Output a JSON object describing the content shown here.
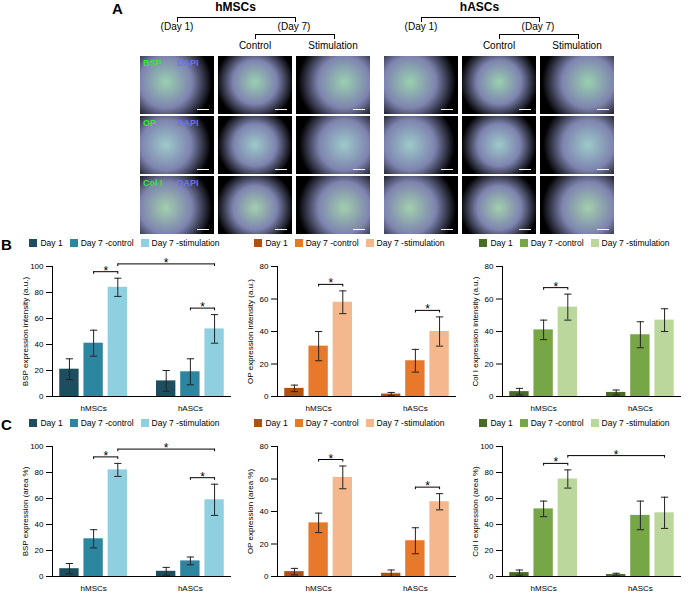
{
  "panel_a": {
    "label": "A",
    "groups": [
      {
        "name": "hMSCs",
        "day_first": "(Day 1)",
        "day_second": "(Day 7)",
        "conditions": [
          "Control",
          "Stimulation"
        ]
      },
      {
        "name": "hASCs",
        "day_first": "(Day 1)",
        "day_second": "(Day 7)",
        "conditions": [
          "Control",
          "Stimulation"
        ]
      }
    ],
    "rows": [
      [
        "BSP",
        "DAPI"
      ],
      [
        "OP",
        "DAPI"
      ],
      [
        "Col I",
        "DAPI"
      ]
    ]
  },
  "chart_data": [
    {
      "panel": "B",
      "type": "bar",
      "ylabel": "BSP expression intensity (a.u.)",
      "legend": "top",
      "categories": [
        "hMSCs",
        "hASCs"
      ],
      "series": [
        {
          "name": "Day 1",
          "color": "#1d4e60",
          "values": [
            21,
            12
          ],
          "errors": [
            8,
            8
          ]
        },
        {
          "name": "Day 7 -control",
          "color": "#2d86a0",
          "values": [
            41,
            19
          ],
          "errors": [
            10,
            10
          ]
        },
        {
          "name": "Day 7 -stimulation",
          "color": "#8ecfe0",
          "values": [
            84,
            52
          ],
          "errors": [
            7,
            11
          ]
        }
      ],
      "ylim": [
        0,
        100
      ],
      "yticks": [
        0,
        20,
        40,
        60,
        80,
        100
      ],
      "brackets": [
        {
          "from": [
            "hMSCs",
            "Day 7 -control"
          ],
          "to": [
            "hMSCs",
            "Day 7 -stimulation"
          ],
          "label": "*"
        },
        {
          "from": [
            "hMSCs",
            "Day 7 -stimulation"
          ],
          "to": [
            "hASCs",
            "Day 7 -stimulation"
          ],
          "label": "*"
        },
        {
          "from": [
            "hASCs",
            "Day 7 -control"
          ],
          "to": [
            "hASCs",
            "Day 7 -stimulation"
          ],
          "label": "*"
        }
      ]
    },
    {
      "panel": "B",
      "type": "bar",
      "ylabel": "OP expression intensity (a.u.)",
      "legend": "top",
      "categories": [
        "hMSCs",
        "hASCs"
      ],
      "series": [
        {
          "name": "Day 1",
          "color": "#b3500f",
          "values": [
            5,
            1.5
          ],
          "errors": [
            2,
            1
          ]
        },
        {
          "name": "Day 7 -control",
          "color": "#e8782a",
          "values": [
            31,
            22
          ],
          "errors": [
            9,
            7
          ]
        },
        {
          "name": "Day 7 -stimulation",
          "color": "#f5b88c",
          "values": [
            58,
            40
          ],
          "errors": [
            7,
            9
          ]
        }
      ],
      "ylim": [
        0,
        80
      ],
      "yticks": [
        0,
        20,
        40,
        60,
        80
      ],
      "brackets": [
        {
          "from": [
            "hMSCs",
            "Day 7 -control"
          ],
          "to": [
            "hMSCs",
            "Day 7 -stimulation"
          ],
          "label": "*"
        },
        {
          "from": [
            "hASCs",
            "Day 7 -control"
          ],
          "to": [
            "hASCs",
            "Day 7 -stimulation"
          ],
          "label": "*"
        }
      ]
    },
    {
      "panel": "B",
      "type": "bar",
      "ylabel": "Col I expression intensity (a.u.)",
      "legend": "top",
      "categories": [
        "hMSCs",
        "hASCs"
      ],
      "series": [
        {
          "name": "Day 1",
          "color": "#4a6b24",
          "values": [
            3,
            2.5
          ],
          "errors": [
            2,
            1.5
          ]
        },
        {
          "name": "Day 7 -control",
          "color": "#77a646",
          "values": [
            41,
            38
          ],
          "errors": [
            6,
            8
          ]
        },
        {
          "name": "Day 7 -stimulation",
          "color": "#bcd79b",
          "values": [
            55,
            47
          ],
          "errors": [
            8,
            7
          ]
        }
      ],
      "ylim": [
        0,
        80
      ],
      "yticks": [
        0,
        20,
        40,
        60,
        80
      ],
      "brackets": [
        {
          "from": [
            "hMSCs",
            "Day 7 -control"
          ],
          "to": [
            "hMSCs",
            "Day 7 -stimulation"
          ],
          "label": "*"
        }
      ]
    },
    {
      "panel": "C",
      "type": "bar",
      "ylabel": "BSP expression (area %)",
      "legend": "top",
      "categories": [
        "hMSCs",
        "hASCs"
      ],
      "series": [
        {
          "name": "Day 1",
          "color": "#1d4e60",
          "values": [
            6,
            4
          ],
          "errors": [
            4,
            3
          ]
        },
        {
          "name": "Day 7 -control",
          "color": "#2d86a0",
          "values": [
            29,
            12
          ],
          "errors": [
            7,
            3
          ]
        },
        {
          "name": "Day 7 -stimulation",
          "color": "#8ecfe0",
          "values": [
            82,
            59
          ],
          "errors": [
            5,
            12
          ]
        }
      ],
      "ylim": [
        0,
        100
      ],
      "yticks": [
        0,
        20,
        40,
        60,
        80,
        100
      ],
      "brackets": [
        {
          "from": [
            "hMSCs",
            "Day 7 -control"
          ],
          "to": [
            "hMSCs",
            "Day 7 -stimulation"
          ],
          "label": "*"
        },
        {
          "from": [
            "hMSCs",
            "Day 7 -stimulation"
          ],
          "to": [
            "hASCs",
            "Day 7 -stimulation"
          ],
          "label": "*"
        },
        {
          "from": [
            "hASCs",
            "Day 7 -control"
          ],
          "to": [
            "hASCs",
            "Day 7 -stimulation"
          ],
          "label": "*"
        }
      ]
    },
    {
      "panel": "C",
      "type": "bar",
      "ylabel": "OP expression (area %)",
      "legend": "top",
      "categories": [
        "hMSCs",
        "hASCs"
      ],
      "series": [
        {
          "name": "Day 1",
          "color": "#b3500f",
          "values": [
            3,
            2
          ],
          "errors": [
            2,
            2
          ]
        },
        {
          "name": "Day 7 -control",
          "color": "#e8782a",
          "values": [
            33,
            22
          ],
          "errors": [
            6,
            8
          ]
        },
        {
          "name": "Day 7 -stimulation",
          "color": "#f5b88c",
          "values": [
            61,
            46
          ],
          "errors": [
            7,
            5
          ]
        }
      ],
      "ylim": [
        0,
        80
      ],
      "yticks": [
        0,
        20,
        40,
        60,
        80
      ],
      "brackets": [
        {
          "from": [
            "hMSCs",
            "Day 7 -control"
          ],
          "to": [
            "hMSCs",
            "Day 7 -stimulation"
          ],
          "label": "*"
        },
        {
          "from": [
            "hASCs",
            "Day 7 -control"
          ],
          "to": [
            "hASCs",
            "Day 7 -stimulation"
          ],
          "label": "*"
        }
      ]
    },
    {
      "panel": "C",
      "type": "bar",
      "ylabel": "Col I expression (area %)",
      "legend": "top",
      "categories": [
        "hMSCs",
        "hASCs"
      ],
      "series": [
        {
          "name": "Day 1",
          "color": "#4a6b24",
          "values": [
            3,
            1.5
          ],
          "errors": [
            2,
            1
          ]
        },
        {
          "name": "Day 7 -control",
          "color": "#77a646",
          "values": [
            52,
            47
          ],
          "errors": [
            6,
            11
          ]
        },
        {
          "name": "Day 7 -stimulation",
          "color": "#bcd79b",
          "values": [
            75,
            49
          ],
          "errors": [
            7,
            12
          ]
        }
      ],
      "ylim": [
        0,
        100
      ],
      "yticks": [
        0,
        20,
        40,
        60,
        80,
        100
      ],
      "brackets": [
        {
          "from": [
            "hMSCs",
            "Day 7 -control"
          ],
          "to": [
            "hMSCs",
            "Day 7 -stimulation"
          ],
          "label": "*"
        },
        {
          "from": [
            "hMSCs",
            "Day 7 -stimulation"
          ],
          "to": [
            "hASCs",
            "Day 7 -stimulation"
          ],
          "label": "*"
        }
      ]
    }
  ]
}
